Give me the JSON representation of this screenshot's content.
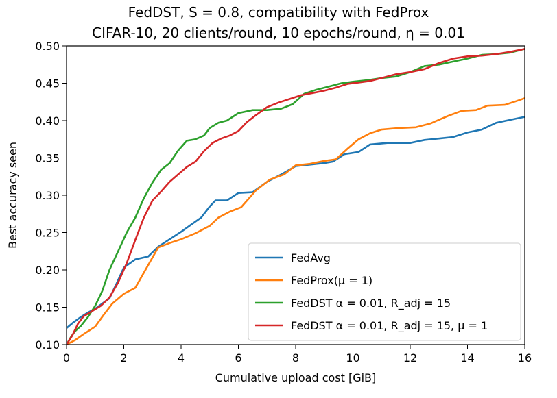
{
  "chart_data": {
    "type": "line",
    "title_line1": "FedDST, S = 0.8, compatibility with FedProx",
    "title_line2": "CIFAR-10, 20 clients/round, 10 epochs/round, η = 0.01",
    "xlabel": "Cumulative upload cost [GiB]",
    "ylabel": "Best accuracy seen",
    "xlim": [
      0,
      16
    ],
    "ylim": [
      0.1,
      0.5
    ],
    "xticks": [
      0,
      2,
      4,
      6,
      8,
      10,
      12,
      14,
      16
    ],
    "yticks": [
      0.1,
      0.15,
      0.2,
      0.25,
      0.3,
      0.35,
      0.4,
      0.45,
      0.5
    ],
    "xtick_labels": [
      "0",
      "2",
      "4",
      "6",
      "8",
      "10",
      "12",
      "14",
      "16"
    ],
    "ytick_labels": [
      "0.10",
      "0.15",
      "0.20",
      "0.25",
      "0.30",
      "0.35",
      "0.40",
      "0.45",
      "0.50"
    ],
    "grid": false,
    "legend_position": "bottom-right",
    "series": [
      {
        "name": "FedAvg",
        "color": "#1f77b4",
        "x": [
          0,
          0.25,
          0.5,
          0.75,
          1.0,
          1.25,
          1.5,
          1.75,
          2.0,
          2.4,
          2.85,
          3.2,
          3.6,
          4.0,
          4.4,
          4.7,
          5.0,
          5.2,
          5.6,
          6.0,
          6.5,
          7.0,
          7.5,
          8.0,
          8.5,
          9.0,
          9.3,
          9.7,
          10.2,
          10.6,
          11.2,
          11.6,
          12.0,
          12.5,
          13.0,
          13.5,
          14.0,
          14.5,
          15.0,
          15.5,
          16.0
        ],
        "y": [
          0.122,
          0.13,
          0.137,
          0.143,
          0.148,
          0.155,
          0.162,
          0.182,
          0.203,
          0.214,
          0.218,
          0.231,
          0.241,
          0.251,
          0.262,
          0.27,
          0.285,
          0.293,
          0.293,
          0.303,
          0.304,
          0.318,
          0.328,
          0.339,
          0.341,
          0.343,
          0.345,
          0.355,
          0.358,
          0.368,
          0.37,
          0.37,
          0.37,
          0.374,
          0.376,
          0.378,
          0.384,
          0.388,
          0.397,
          0.401,
          0.405
        ]
      },
      {
        "name": "FedProx(μ = 1)",
        "color": "#ff7f0e",
        "x": [
          0,
          0.3,
          0.6,
          1.0,
          1.3,
          1.6,
          2.0,
          2.4,
          2.8,
          3.2,
          3.6,
          4.0,
          4.5,
          5.0,
          5.3,
          5.7,
          6.1,
          6.6,
          7.1,
          7.6,
          8.0,
          8.5,
          9.0,
          9.4,
          9.8,
          10.2,
          10.6,
          11.0,
          11.6,
          12.2,
          12.7,
          13.3,
          13.8,
          14.3,
          14.7,
          15.3,
          15.7,
          16.0
        ],
        "y": [
          0.1,
          0.106,
          0.114,
          0.124,
          0.14,
          0.155,
          0.168,
          0.176,
          0.203,
          0.23,
          0.236,
          0.241,
          0.249,
          0.259,
          0.27,
          0.278,
          0.284,
          0.306,
          0.321,
          0.328,
          0.34,
          0.342,
          0.346,
          0.348,
          0.362,
          0.375,
          0.383,
          0.388,
          0.39,
          0.391,
          0.396,
          0.406,
          0.413,
          0.414,
          0.42,
          0.421,
          0.426,
          0.43
        ]
      },
      {
        "name": "FedDST α = 0.01, R_adj = 15",
        "color": "#2ca02c",
        "x": [
          0,
          0.15,
          0.3,
          0.5,
          0.75,
          1.0,
          1.25,
          1.5,
          1.8,
          2.1,
          2.4,
          2.7,
          3.0,
          3.3,
          3.6,
          3.9,
          4.2,
          4.5,
          4.8,
          5.0,
          5.3,
          5.6,
          6.0,
          6.5,
          7.0,
          7.5,
          7.9,
          8.3,
          8.7,
          9.1,
          9.6,
          10.0,
          10.5,
          11.0,
          11.5,
          12.0,
          12.5,
          13.0,
          13.5,
          14.0,
          14.5,
          15.0,
          15.5,
          16.0
        ],
        "y": [
          0.1,
          0.11,
          0.118,
          0.125,
          0.137,
          0.152,
          0.172,
          0.2,
          0.225,
          0.25,
          0.27,
          0.296,
          0.317,
          0.334,
          0.343,
          0.36,
          0.373,
          0.375,
          0.38,
          0.39,
          0.397,
          0.4,
          0.41,
          0.414,
          0.414,
          0.416,
          0.422,
          0.436,
          0.441,
          0.445,
          0.45,
          0.452,
          0.454,
          0.457,
          0.459,
          0.465,
          0.473,
          0.475,
          0.479,
          0.483,
          0.488,
          0.489,
          0.491,
          0.496
        ]
      },
      {
        "name": "FedDST α = 0.01, R_adj = 15, μ = 1",
        "color": "#d62728",
        "x": [
          0,
          0.2,
          0.4,
          0.6,
          0.9,
          1.2,
          1.5,
          1.8,
          2.1,
          2.4,
          2.7,
          3.0,
          3.3,
          3.6,
          3.9,
          4.2,
          4.5,
          4.8,
          5.1,
          5.4,
          5.7,
          6.0,
          6.3,
          6.6,
          7.0,
          7.4,
          7.8,
          8.2,
          8.6,
          9.0,
          9.4,
          9.8,
          10.2,
          10.6,
          11.0,
          11.5,
          12.0,
          12.5,
          13.0,
          13.5,
          14.0,
          14.5,
          15.0,
          15.5,
          16.0
        ],
        "y": [
          0.1,
          0.112,
          0.128,
          0.138,
          0.145,
          0.152,
          0.163,
          0.183,
          0.209,
          0.24,
          0.27,
          0.293,
          0.305,
          0.318,
          0.328,
          0.338,
          0.345,
          0.359,
          0.37,
          0.376,
          0.38,
          0.386,
          0.398,
          0.407,
          0.418,
          0.424,
          0.429,
          0.434,
          0.437,
          0.44,
          0.444,
          0.449,
          0.451,
          0.453,
          0.457,
          0.462,
          0.465,
          0.469,
          0.477,
          0.483,
          0.486,
          0.487,
          0.489,
          0.492,
          0.496
        ]
      }
    ],
    "legend": [
      {
        "label": "FedAvg",
        "color": "#1f77b4"
      },
      {
        "label": "FedProx(μ = 1)",
        "color": "#ff7f0e"
      },
      {
        "label": "FedDST α = 0.01, R_adj = 15",
        "color": "#2ca02c"
      },
      {
        "label": "FedDST α = 0.01, R_adj = 15, μ = 1",
        "color": "#d62728"
      }
    ]
  }
}
